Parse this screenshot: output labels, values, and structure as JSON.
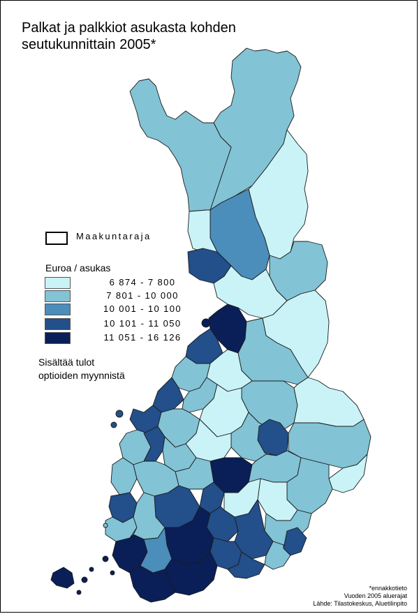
{
  "title": {
    "line1": "Palkat ja palkkiot asukasta kohden",
    "line2": "seutukunnittain  2005*"
  },
  "legend": {
    "border_label": "Maakuntaraja",
    "unit_label": "Euroa / asukas",
    "classes": [
      {
        "range": "6 874 - 7 800",
        "color": "#c9f3f7"
      },
      {
        "range": "7 801 - 10 000",
        "color": "#82c3d5"
      },
      {
        "range": "10 001 - 10 100",
        "color": "#4b8dbb"
      },
      {
        "range": "10 101 - 11 050",
        "color": "#234f8a"
      },
      {
        "range": "11 051 - 16 126",
        "color": "#0a1f58"
      }
    ]
  },
  "note": {
    "line1": "Sisältää tulot",
    "line2": "optioiden myynnistä"
  },
  "footer": {
    "line1": "*ennakkotieto",
    "line2": "Vuoden 2005 aluerajat",
    "line3": "Lähde: Tilastokeskus, Aluetilinpito"
  }
}
